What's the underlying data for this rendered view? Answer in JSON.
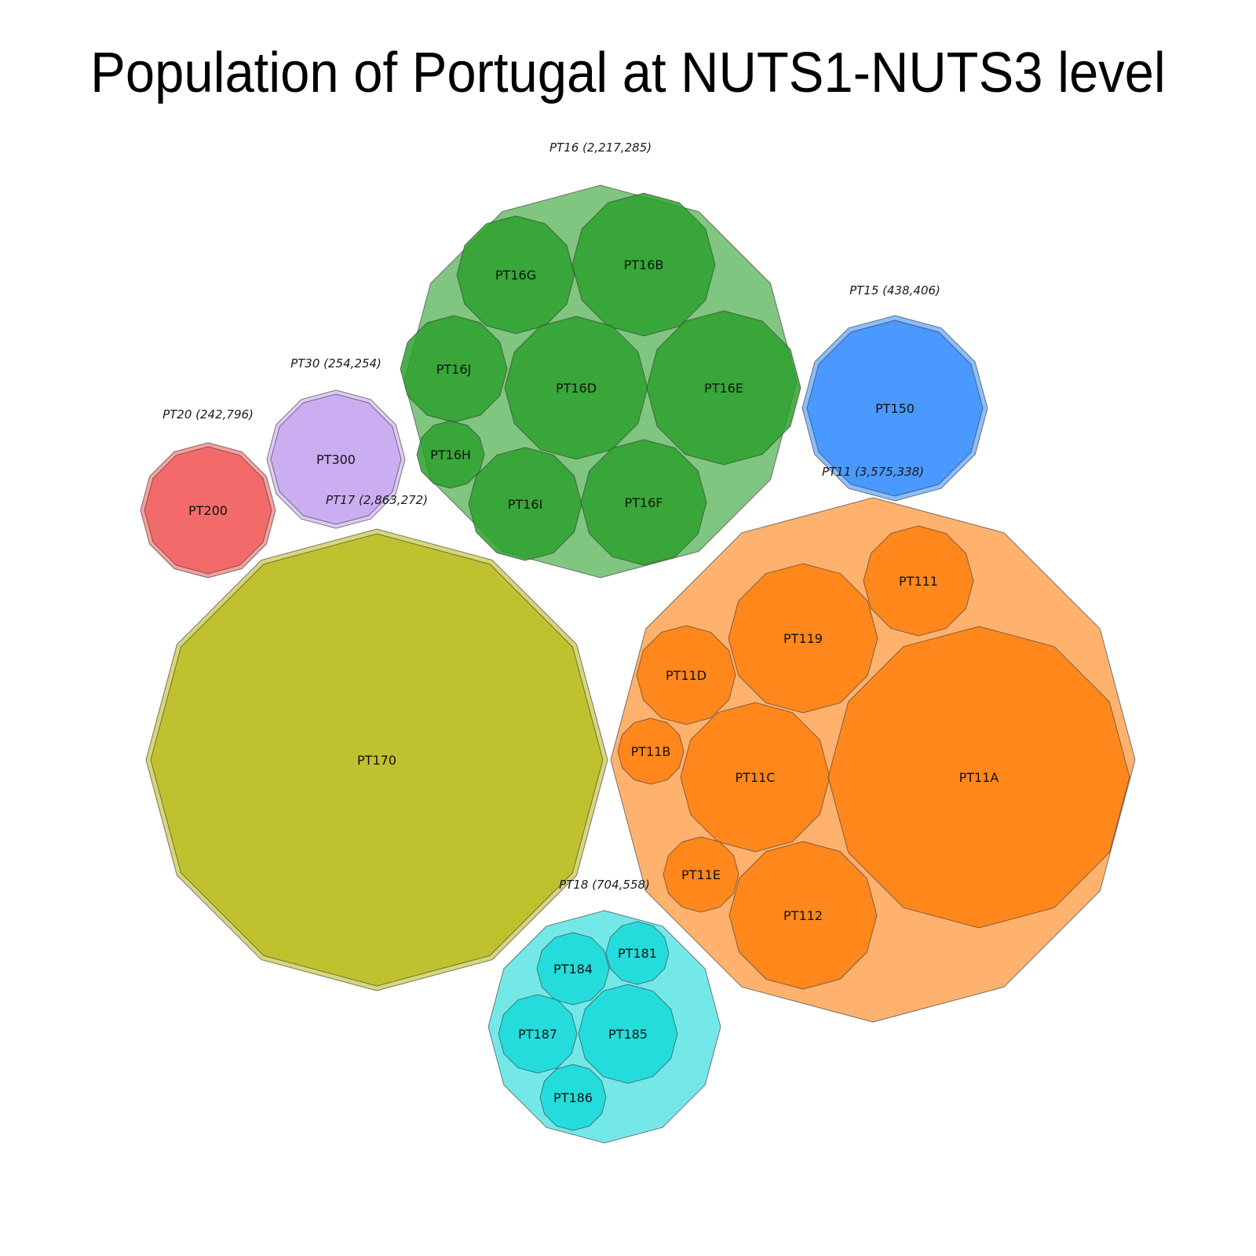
{
  "chart_data": {
    "type": "circle-packing",
    "title": "Population of Portugal at NUTS1-NUTS3 level",
    "groups": [
      {
        "label": "PT16 (2,217,285)",
        "color": "#2ca02c",
        "value": 2217285,
        "children": [
          "PT16G",
          "PT16B",
          "PT16J",
          "PT16D",
          "PT16E",
          "PT16H",
          "PT16I",
          "PT16F"
        ]
      },
      {
        "label": "PT15 (438,406)",
        "color": "#3e93ff",
        "value": 438406,
        "children": [
          "PT150"
        ]
      },
      {
        "label": "PT30 (254,254)",
        "color": "#c8a8f0",
        "value": 254254,
        "children": [
          "PT300"
        ]
      },
      {
        "label": "PT20 (242,796)",
        "color": "#f26060",
        "value": 242796,
        "children": [
          "PT200"
        ]
      },
      {
        "label": "PT17 (2,863,272)",
        "color": "#bcbd22",
        "value": 2863272,
        "children": [
          "PT170"
        ]
      },
      {
        "label": "PT11 (3,575,338)",
        "color": "#ff7f0e",
        "value": 3575338,
        "children": [
          "PT111",
          "PT119",
          "PT11D",
          "PT11B",
          "PT11C",
          "PT11A",
          "PT11E",
          "PT112"
        ]
      },
      {
        "label": "PT18 (704,558)",
        "color": "#17d9d9",
        "value": 704558,
        "children": [
          "PT184",
          "PT181",
          "PT187",
          "PT185",
          "PT186"
        ]
      }
    ]
  }
}
